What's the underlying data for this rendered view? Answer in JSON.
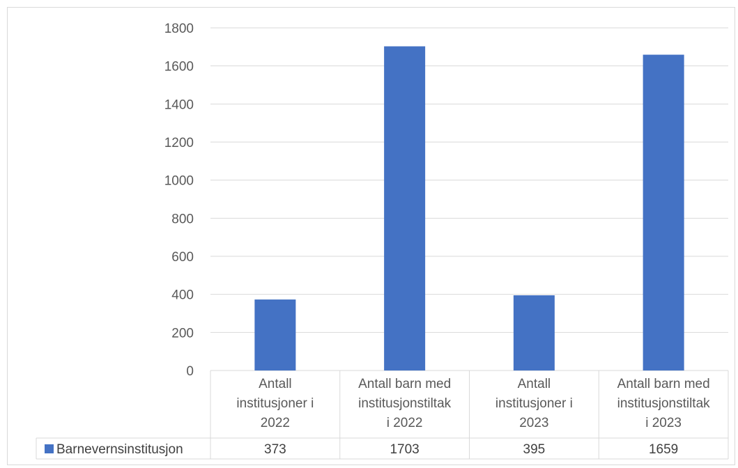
{
  "chart_data": {
    "type": "bar",
    "categories": [
      [
        "Antall",
        "institusjoner i",
        "2022"
      ],
      [
        "Antall barn med",
        "institusjonstiltak",
        "i 2022"
      ],
      [
        "Antall",
        "institusjoner i",
        "2023"
      ],
      [
        "Antall barn med",
        "institusjonstiltak",
        "i 2023"
      ]
    ],
    "series": [
      {
        "name": "Barnevernsinstitusjon",
        "values": [
          373,
          1703,
          395,
          1659
        ],
        "color": "#4472c4"
      }
    ],
    "ylim": [
      0,
      1800
    ],
    "yticks": [
      0,
      200,
      400,
      600,
      800,
      1000,
      1200,
      1400,
      1600,
      1800
    ],
    "grid": true,
    "legend": "data-table",
    "data_table": true
  }
}
